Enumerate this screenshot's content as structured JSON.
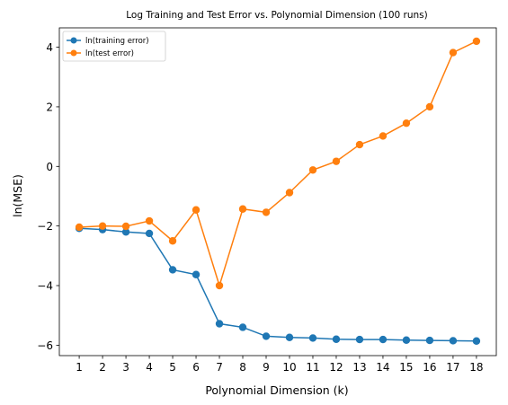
{
  "chart_data": {
    "type": "line",
    "title": "Log Training and Test Error vs. Polynomial Dimension (100 runs)",
    "xlabel": "Polynomial Dimension (k)",
    "ylabel": "ln(MSE)",
    "x": [
      1,
      2,
      3,
      4,
      5,
      6,
      7,
      8,
      9,
      10,
      11,
      12,
      13,
      14,
      15,
      16,
      17,
      18
    ],
    "xticks": [
      "1",
      "2",
      "3",
      "4",
      "5",
      "6",
      "7",
      "8",
      "9",
      "10",
      "11",
      "12",
      "13",
      "14",
      "15",
      "16",
      "17",
      "18"
    ],
    "yticks": [
      -6,
      -4,
      -2,
      0,
      2,
      4
    ],
    "ytick_labels": [
      "−6",
      "−4",
      "−2",
      "0",
      "2",
      "4"
    ],
    "xlim": [
      0.15,
      18.85
    ],
    "ylim": [
      -6.35,
      4.65
    ],
    "grid": false,
    "legend": "top-left",
    "series": [
      {
        "name": "ln(training error)",
        "color": "#1f77b4",
        "marker": "circle",
        "values": [
          -2.08,
          -2.12,
          -2.2,
          -2.25,
          -3.47,
          -3.63,
          -5.28,
          -5.4,
          -5.7,
          -5.74,
          -5.76,
          -5.8,
          -5.81,
          -5.81,
          -5.83,
          -5.84,
          -5.85,
          -5.86
        ]
      },
      {
        "name": "ln(test error)",
        "color": "#ff7f0e",
        "marker": "circle",
        "values": [
          -2.04,
          -2.0,
          -2.01,
          -1.83,
          -2.5,
          -1.46,
          -4.0,
          -1.43,
          -1.54,
          -0.88,
          -0.12,
          0.17,
          0.73,
          1.02,
          1.45,
          2.0,
          3.82,
          4.2
        ]
      }
    ]
  }
}
